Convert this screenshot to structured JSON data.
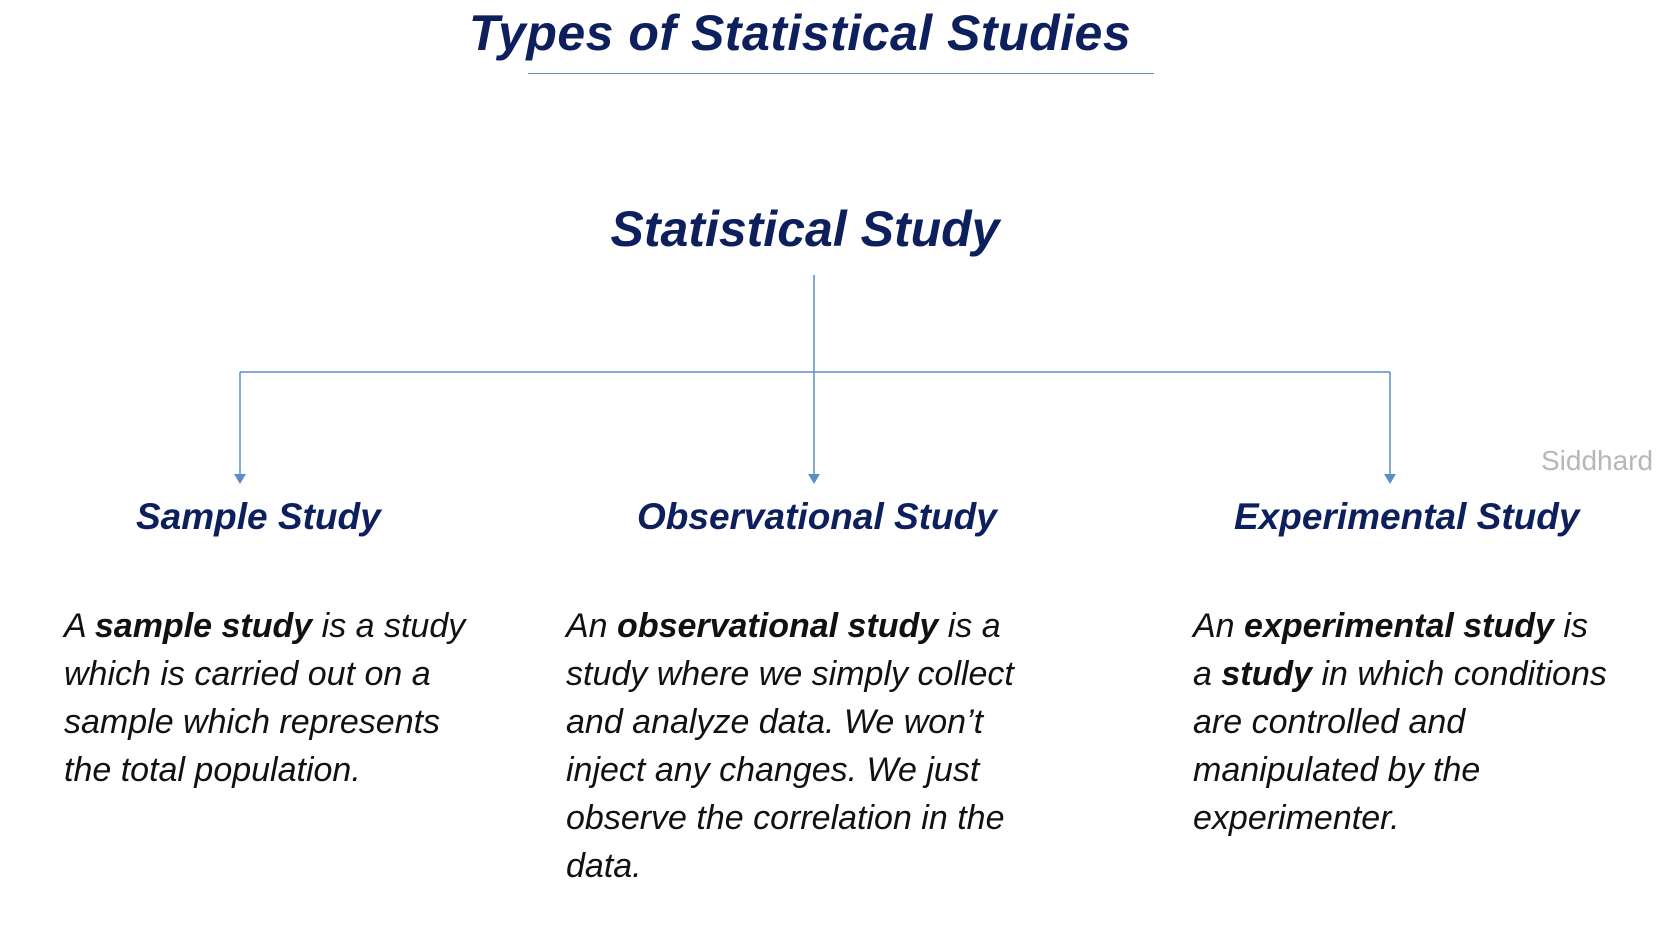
{
  "title": "Types of Statistical Studies",
  "root": {
    "label": "Statistical Study"
  },
  "watermark": "Siddhard",
  "colors": {
    "heading": "#0d1f5c",
    "connector": "#5b8ec5",
    "body_text": "#111111",
    "watermark": "#b7b7b7"
  },
  "children": [
    {
      "heading": "Sample Study",
      "description_lines": [
        [
          "A ",
          "sample study",
          " is a study"
        ],
        [
          "which is carried out on a"
        ],
        [
          "sample which represents"
        ],
        [
          "the total population."
        ]
      ]
    },
    {
      "heading": "Observational Study",
      "description_lines": [
        [
          "An ",
          "observational study",
          " is a"
        ],
        [
          "study where we simply collect"
        ],
        [
          "and analyze data. We won’t"
        ],
        [
          "inject any changes. We just"
        ],
        [
          "observe the correlation in the"
        ],
        [
          "data."
        ]
      ]
    },
    {
      "heading": "Experimental Study",
      "description_lines": [
        [
          "An ",
          "experimental study",
          " is"
        ],
        [
          "a ",
          "study",
          " in which conditions"
        ],
        [
          "are controlled and"
        ],
        [
          "manipulated by the"
        ],
        [
          "experimenter."
        ]
      ]
    }
  ]
}
